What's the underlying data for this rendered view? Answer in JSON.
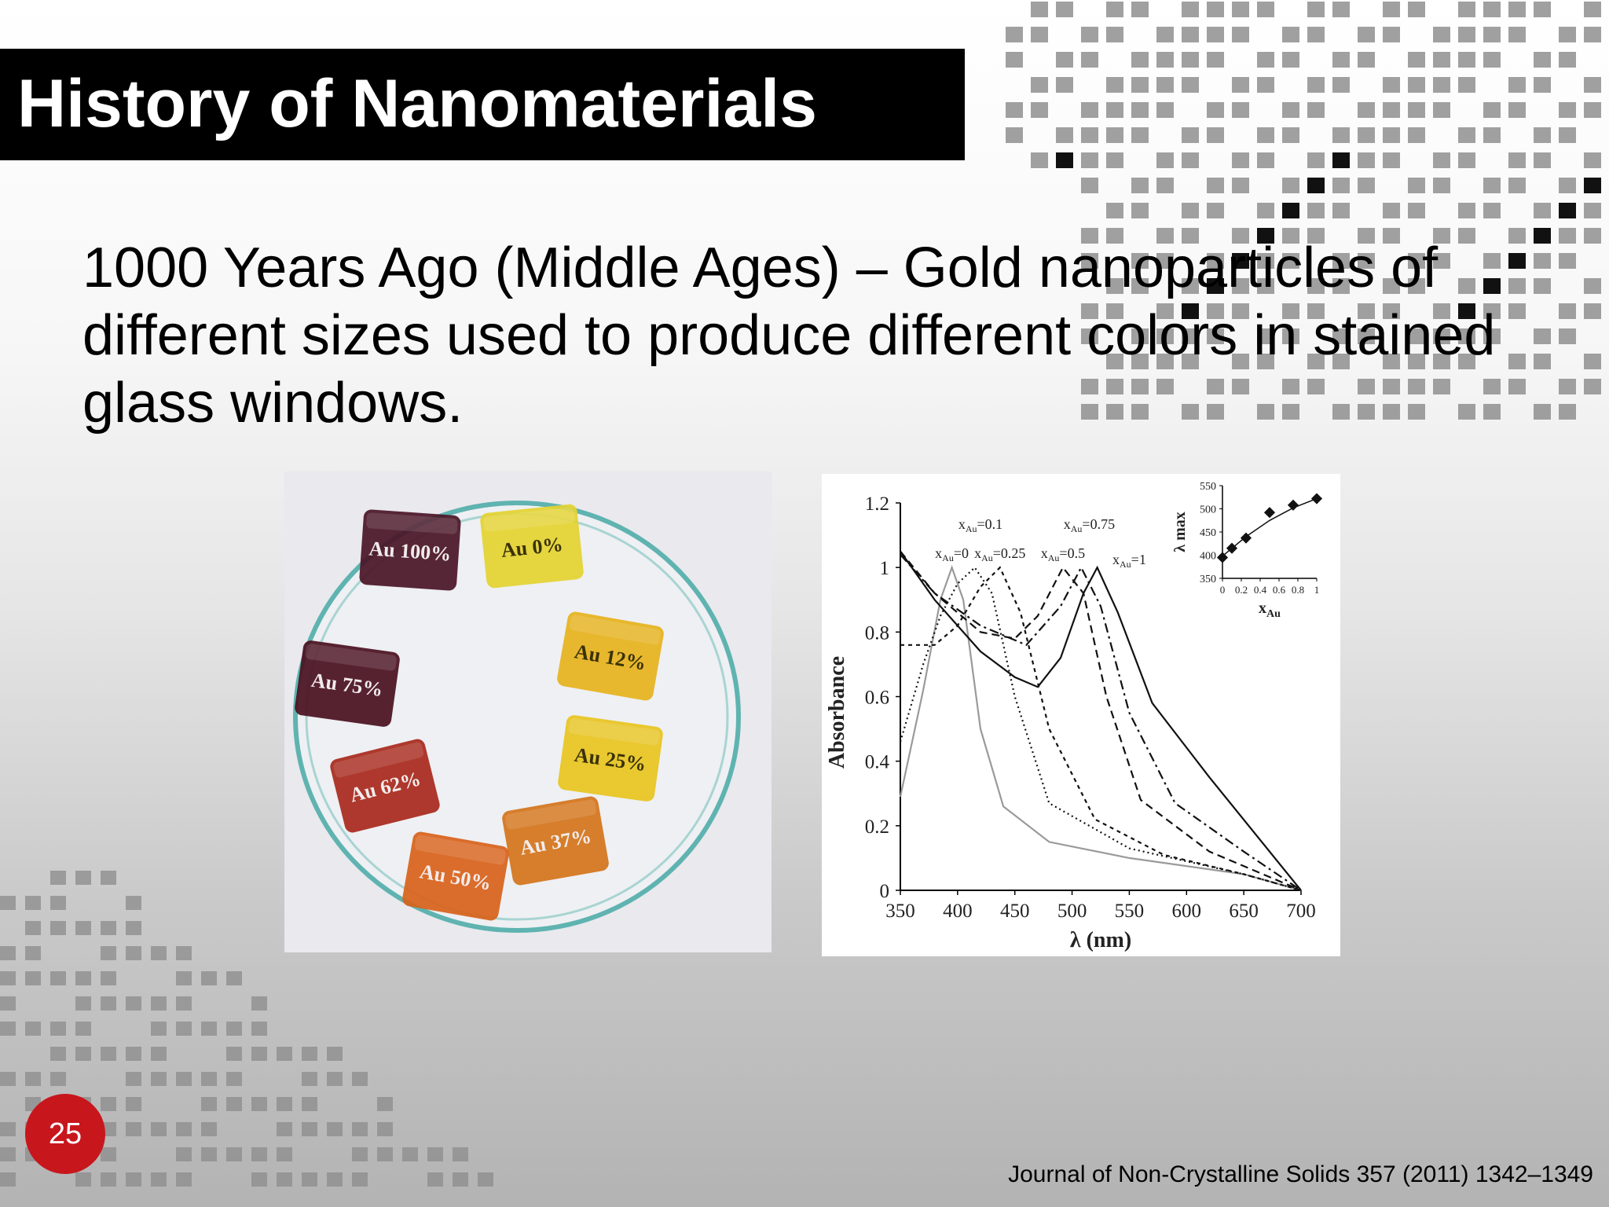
{
  "slide": {
    "title": "History of Nanomaterials",
    "body": "1000 Years Ago (Middle Ages) – Gold nanoparticles of different sizes used to produce different colors in stained glass windows.",
    "slide_number": "25",
    "citation": "Journal of Non-Crystalline Solids 357 (2011) 1342–1349"
  },
  "colors": {
    "title_bar": "#000000",
    "slide_number_badge": "#c8161d",
    "deco_squares": "#8f8f8f"
  },
  "photo": {
    "samples": [
      {
        "label": "Au 100%",
        "color": "#4a1526"
      },
      {
        "label": "Au 0%",
        "color": "#e4d230"
      },
      {
        "label": "Au 75%",
        "color": "#4a1020"
      },
      {
        "label": "Au 12%",
        "color": "#e6b21c"
      },
      {
        "label": "Au 25%",
        "color": "#e8c420"
      },
      {
        "label": "Au 62%",
        "color": "#a8281c"
      },
      {
        "label": "Au 37%",
        "color": "#d4741a"
      },
      {
        "label": "Au 50%",
        "color": "#d8621a"
      }
    ]
  },
  "chart_data": [
    {
      "type": "line",
      "xlabel": "λ (nm)",
      "ylabel": "Absorbance",
      "xlim": [
        350,
        700
      ],
      "ylim": [
        0,
        1.2
      ],
      "x_ticks": [
        "350",
        "400",
        "450",
        "500",
        "550",
        "600",
        "650",
        "700"
      ],
      "y_ticks": [
        "0",
        "0.2",
        "0.4",
        "0.6",
        "0.8",
        "1",
        "1.2"
      ],
      "series": [
        {
          "name": "xAu=0",
          "style": "gray-solid",
          "peak_nm": 395,
          "points": [
            [
              350,
              0.29
            ],
            [
              370,
              0.62
            ],
            [
              385,
              0.9
            ],
            [
              395,
              1.0
            ],
            [
              405,
              0.9
            ],
            [
              420,
              0.5
            ],
            [
              440,
              0.26
            ],
            [
              480,
              0.15
            ],
            [
              550,
              0.1
            ],
            [
              650,
              0.05
            ],
            [
              700,
              0.0
            ]
          ]
        },
        {
          "name": "xAu=0.1",
          "style": "dotted",
          "peak_nm": 415,
          "points": [
            [
              350,
              0.46
            ],
            [
              370,
              0.7
            ],
            [
              385,
              0.85
            ],
            [
              400,
              0.95
            ],
            [
              415,
              1.0
            ],
            [
              430,
              0.92
            ],
            [
              450,
              0.6
            ],
            [
              480,
              0.27
            ],
            [
              550,
              0.13
            ],
            [
              650,
              0.05
            ],
            [
              700,
              0.0
            ]
          ]
        },
        {
          "name": "xAu=0.25",
          "style": "dashed-fine",
          "peak_nm": 437,
          "points": [
            [
              350,
              0.76
            ],
            [
              380,
              0.76
            ],
            [
              400,
              0.82
            ],
            [
              420,
              0.94
            ],
            [
              437,
              1.0
            ],
            [
              455,
              0.86
            ],
            [
              480,
              0.5
            ],
            [
              520,
              0.22
            ],
            [
              580,
              0.11
            ],
            [
              650,
              0.05
            ],
            [
              700,
              0.0
            ]
          ]
        },
        {
          "name": "xAu=0.5",
          "style": "dashed",
          "peak_nm": 492,
          "points": [
            [
              350,
              1.05
            ],
            [
              380,
              0.92
            ],
            [
              420,
              0.8
            ],
            [
              450,
              0.78
            ],
            [
              470,
              0.85
            ],
            [
              492,
              1.0
            ],
            [
              510,
              0.92
            ],
            [
              530,
              0.6
            ],
            [
              560,
              0.28
            ],
            [
              620,
              0.12
            ],
            [
              700,
              0.0
            ]
          ]
        },
        {
          "name": "xAu=0.75",
          "style": "dash-dot",
          "peak_nm": 508,
          "points": [
            [
              350,
              1.04
            ],
            [
              380,
              0.92
            ],
            [
              420,
              0.82
            ],
            [
              460,
              0.76
            ],
            [
              490,
              0.88
            ],
            [
              508,
              1.0
            ],
            [
              525,
              0.88
            ],
            [
              550,
              0.55
            ],
            [
              590,
              0.27
            ],
            [
              650,
              0.12
            ],
            [
              700,
              0.0
            ]
          ]
        },
        {
          "name": "xAu=1",
          "style": "solid",
          "peak_nm": 522,
          "points": [
            [
              350,
              1.05
            ],
            [
              380,
              0.9
            ],
            [
              420,
              0.74
            ],
            [
              450,
              0.66
            ],
            [
              470,
              0.63
            ],
            [
              490,
              0.72
            ],
            [
              510,
              0.92
            ],
            [
              522,
              1.0
            ],
            [
              540,
              0.86
            ],
            [
              570,
              0.58
            ],
            [
              620,
              0.35
            ],
            [
              700,
              0.0
            ]
          ]
        }
      ]
    },
    {
      "type": "scatter",
      "xlabel": "xAu",
      "ylabel": "λ max",
      "xlim": [
        0,
        1
      ],
      "ylim": [
        350,
        550
      ],
      "x_ticks": [
        "0",
        "0.2",
        "0.4",
        "0.6",
        "0.8",
        "1"
      ],
      "y_ticks": [
        "350",
        "400",
        "450",
        "500",
        "550"
      ],
      "points": [
        [
          0,
          395
        ],
        [
          0.1,
          415
        ],
        [
          0.25,
          437
        ],
        [
          0.5,
          492
        ],
        [
          0.75,
          508
        ],
        [
          1,
          522
        ]
      ],
      "trend": [
        [
          0,
          398
        ],
        [
          0.25,
          440
        ],
        [
          0.5,
          475
        ],
        [
          0.75,
          502
        ],
        [
          1,
          522
        ]
      ]
    }
  ]
}
